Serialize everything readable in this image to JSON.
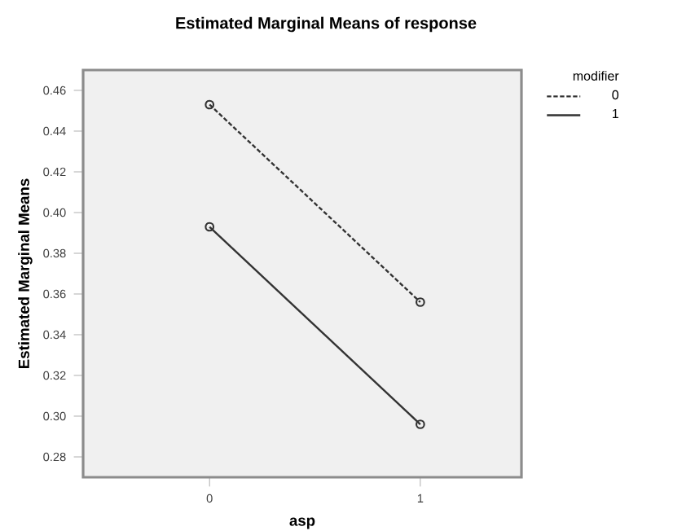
{
  "chart_data": {
    "type": "line",
    "title": "Estimated Marginal Means of response",
    "xlabel": "asp",
    "ylabel": "Estimated Marginal Means",
    "legend_title": "modifier",
    "categories": [
      "0",
      "1"
    ],
    "series": [
      {
        "name": "0",
        "color": "#333333",
        "line_style": "dashed",
        "values": [
          0.453,
          0.356
        ]
      },
      {
        "name": "1",
        "color": "#333333",
        "line_style": "solid",
        "values": [
          0.393,
          0.296
        ]
      }
    ],
    "ylim": [
      0.27,
      0.47
    ],
    "yticks": [
      {
        "value": 0.28,
        "label": "0.28"
      },
      {
        "value": 0.3,
        "label": "0.30"
      },
      {
        "value": 0.32,
        "label": "0.32"
      },
      {
        "value": 0.34,
        "label": "0.34"
      },
      {
        "value": 0.36,
        "label": "0.36"
      },
      {
        "value": 0.38,
        "label": "0.38"
      },
      {
        "value": 0.4,
        "label": "0.40"
      },
      {
        "value": 0.42,
        "label": "0.42"
      },
      {
        "value": 0.44,
        "label": "0.44"
      },
      {
        "value": 0.46,
        "label": "0.46"
      }
    ],
    "marker": "circle",
    "legend": "top right",
    "grid": false
  }
}
